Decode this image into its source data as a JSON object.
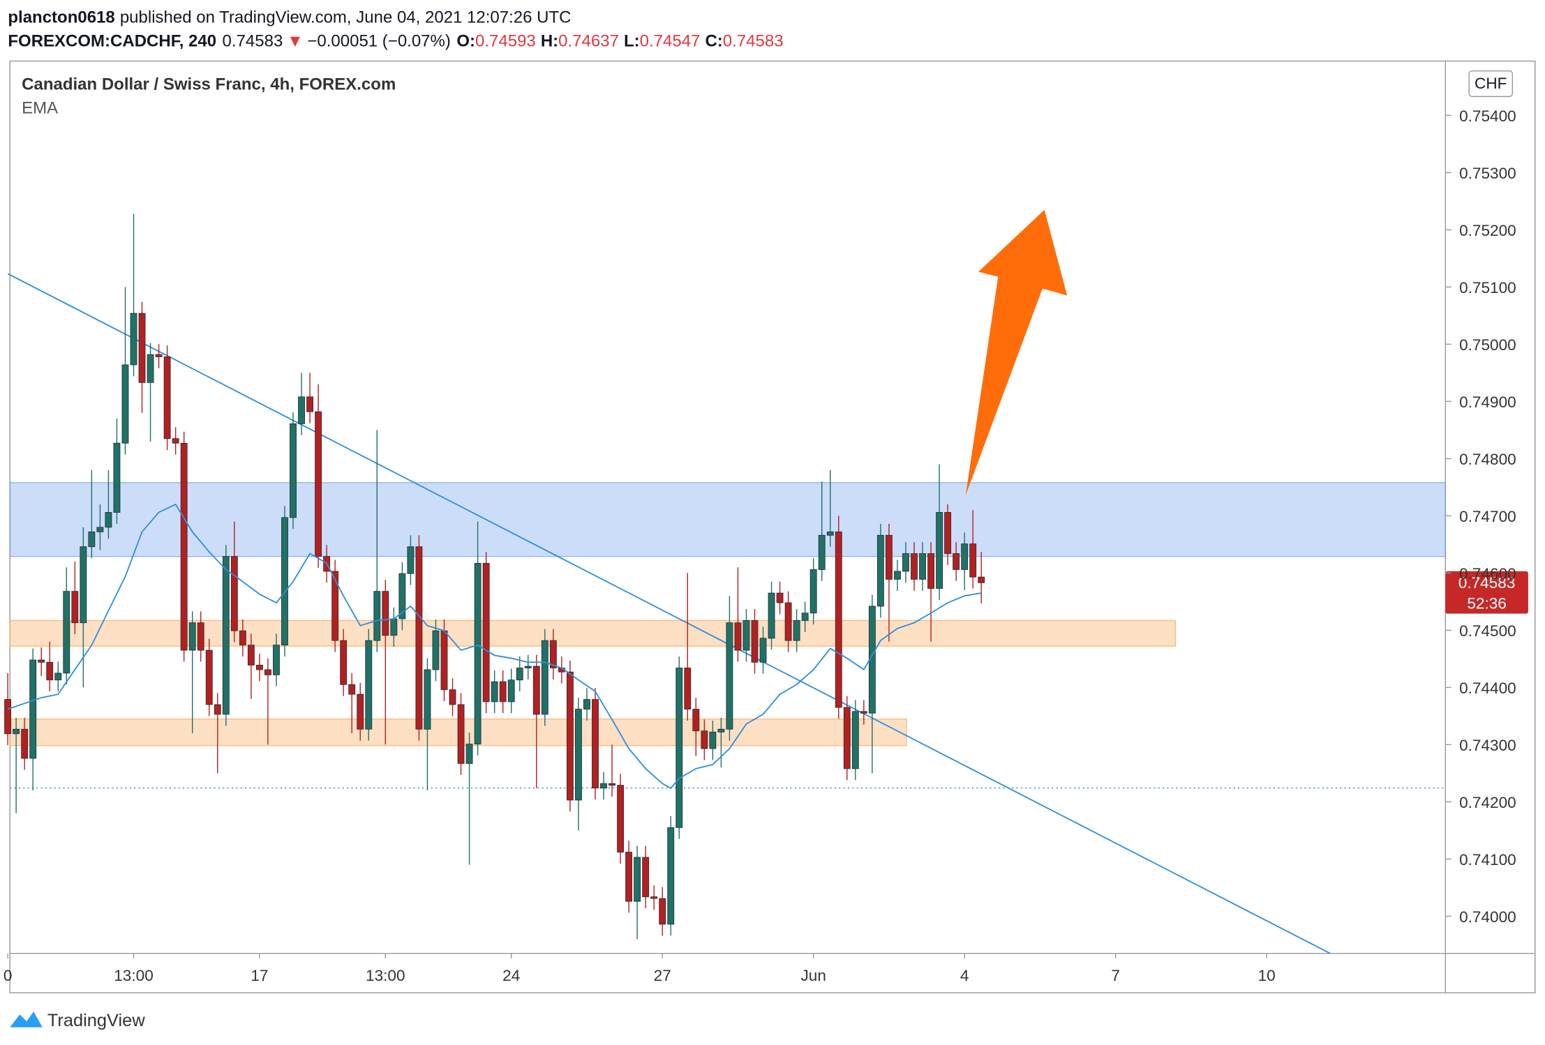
{
  "header": {
    "author": "plancton0618",
    "published": "published on TradingView.com, June 04, 2021 12:07:26 UTC",
    "symbol": "FOREXCOM:CADCHF, 240",
    "arrow": "▼",
    "change": "−0.00051 (−0.07%)",
    "o": "O:",
    "h": "H:",
    "l": "L:",
    "c": "C:"
  },
  "footer": {
    "brand": "TradingView"
  },
  "chart_data": {
    "type": "candlestick",
    "title": "Canadian Dollar / Swiss Franc, 4h, FOREX.com",
    "currency": "CHF",
    "countdown": "52:36",
    "up_color": "#1f7266",
    "down_color": "#b42020",
    "x": [
      0,
      1,
      2,
      3,
      4,
      5,
      6,
      7,
      8,
      9,
      10,
      11,
      12,
      13,
      14,
      15,
      16,
      17,
      18,
      19,
      20,
      21,
      22,
      23,
      24,
      25,
      26,
      27,
      28,
      29,
      30,
      31,
      32,
      33,
      34,
      35,
      36,
      37,
      38,
      39,
      40,
      41,
      42,
      43,
      44,
      45,
      46,
      47,
      48,
      49,
      50,
      51,
      52,
      53,
      54,
      55,
      56,
      57,
      58,
      59,
      60,
      61,
      62,
      63,
      64,
      65,
      66,
      67,
      68,
      69,
      70,
      71,
      72,
      73,
      74,
      75,
      76,
      77,
      78,
      79,
      80,
      81,
      82,
      83,
      84,
      85,
      86,
      87,
      88,
      89,
      90,
      91,
      92,
      93,
      94,
      95,
      96,
      97,
      98,
      99,
      100,
      101,
      102,
      103,
      104,
      105,
      106,
      107,
      108,
      109,
      110,
      111,
      112,
      113,
      114,
      115,
      116
    ],
    "open": [
      0.74379,
      0.74319,
      0.74327,
      0.74276,
      0.74448,
      0.74444,
      0.74413,
      0.74425,
      0.74568,
      0.74513,
      0.74646,
      0.74672,
      0.7468,
      0.74706,
      0.74827,
      0.74964,
      0.75054,
      0.74933,
      0.74982,
      0.74978,
      0.74835,
      0.74827,
      0.74465,
      0.74513,
      0.74465,
      0.7437,
      0.74353,
      0.74629,
      0.74499,
      0.74474,
      0.74439,
      0.74431,
      0.74422,
      0.74474,
      0.74697,
      0.74861,
      0.74908,
      0.74882,
      0.74629,
      0.74603,
      0.74482,
      0.74405,
      0.74388,
      0.74327,
      0.74482,
      0.74568,
      0.74491,
      0.7452,
      0.74599,
      0.74646,
      0.74327,
      0.74431,
      0.74499,
      0.74396,
      0.7437,
      0.74267,
      0.74301,
      0.74617,
      0.74375,
      0.7441,
      0.74375,
      0.74413,
      0.74434,
      0.74437,
      0.74353,
      0.74482,
      0.74434,
      0.74427,
      0.74203,
      0.74362,
      0.74379,
      0.74224,
      0.74232,
      0.74229,
      0.74112,
      0.74026,
      0.74103,
      0.74034,
      0.74031,
      0.73986,
      0.74155,
      0.74434,
      0.74362,
      0.74324,
      0.74293,
      0.74322,
      0.74327,
      0.74513,
      0.74465,
      0.74517,
      0.74444,
      0.74486,
      0.74565,
      0.74548,
      0.74482,
      0.74517,
      0.7453,
      0.74606,
      0.74666,
      0.74672,
      0.74365,
      0.74258,
      0.74358,
      0.74355,
      0.74542,
      0.74666,
      0.74589,
      0.74603,
      0.74634,
      0.74589,
      0.74634,
      0.74573,
      0.74706,
      0.74634,
      0.74606,
      0.74651,
      0.74593
    ],
    "high": [
      0.74425,
      0.74347,
      0.74347,
      0.74468,
      0.7447,
      0.7448,
      0.74445,
      0.7461,
      0.7462,
      0.7468,
      0.7478,
      0.7472,
      0.7478,
      0.7487,
      0.751,
      0.75228,
      0.75074,
      0.75002,
      0.75,
      0.74998,
      0.74855,
      0.74847,
      0.74533,
      0.74533,
      0.74485,
      0.7439,
      0.74649,
      0.7469,
      0.74519,
      0.74494,
      0.74459,
      0.74451,
      0.74494,
      0.74717,
      0.74881,
      0.7495,
      0.7495,
      0.7493,
      0.74649,
      0.74623,
      0.74502,
      0.74425,
      0.74408,
      0.74502,
      0.7485,
      0.74588,
      0.7454,
      0.74619,
      0.74666,
      0.74666,
      0.74451,
      0.74519,
      0.74519,
      0.74416,
      0.7439,
      0.74321,
      0.7469,
      0.74637,
      0.7443,
      0.7443,
      0.74433,
      0.74454,
      0.74457,
      0.74457,
      0.74502,
      0.74502,
      0.74454,
      0.74447,
      0.74382,
      0.74399,
      0.74399,
      0.74252,
      0.743,
      0.74249,
      0.74132,
      0.74123,
      0.74123,
      0.74054,
      0.74051,
      0.74175,
      0.74454,
      0.746,
      0.74382,
      0.74344,
      0.74342,
      0.74347,
      0.7456,
      0.7461,
      0.74537,
      0.74537,
      0.74506,
      0.74585,
      0.74585,
      0.74568,
      0.74537,
      0.7455,
      0.74626,
      0.7476,
      0.7478,
      0.747,
      0.74385,
      0.74378,
      0.74378,
      0.74562,
      0.74686,
      0.74686,
      0.74623,
      0.74654,
      0.74654,
      0.74654,
      0.74654,
      0.7479,
      0.7472,
      0.74654,
      0.74671,
      0.7471,
      0.74637
    ],
    "low": [
      0.74299,
      0.7418,
      0.74256,
      0.7422,
      0.7442,
      0.74393,
      0.74393,
      0.74405,
      0.74493,
      0.744,
      0.74626,
      0.7464,
      0.7466,
      0.74686,
      0.74807,
      0.74944,
      0.7488,
      0.7483,
      0.74958,
      0.74815,
      0.74807,
      0.74445,
      0.7432,
      0.74445,
      0.7435,
      0.7425,
      0.74333,
      0.74479,
      0.74454,
      0.7438,
      0.74411,
      0.743,
      0.74402,
      0.74454,
      0.74677,
      0.74841,
      0.74862,
      0.74609,
      0.74583,
      0.74462,
      0.74385,
      0.7432,
      0.74307,
      0.74307,
      0.74462,
      0.743,
      0.74471,
      0.745,
      0.74579,
      0.74307,
      0.7422,
      0.74411,
      0.74376,
      0.7435,
      0.74247,
      0.7409,
      0.74281,
      0.74355,
      0.74355,
      0.74355,
      0.74355,
      0.74393,
      0.74414,
      0.74224,
      0.74333,
      0.74414,
      0.74407,
      0.74183,
      0.7415,
      0.74342,
      0.74204,
      0.74204,
      0.74209,
      0.74092,
      0.74006,
      0.7396,
      0.74014,
      0.74011,
      0.73966,
      0.73966,
      0.74135,
      0.74342,
      0.7428,
      0.74273,
      0.74273,
      0.7426,
      0.74307,
      0.74445,
      0.74445,
      0.74424,
      0.74424,
      0.74466,
      0.74528,
      0.74462,
      0.74462,
      0.74497,
      0.7451,
      0.74586,
      0.74646,
      0.74345,
      0.74238,
      0.74238,
      0.74335,
      0.7425,
      0.74522,
      0.7448,
      0.74569,
      0.74583,
      0.74569,
      0.74569,
      0.7448,
      0.74553,
      0.74614,
      0.74586,
      0.7457,
      0.74573,
      0.74547
    ],
    "close": [
      0.74319,
      0.74327,
      0.74276,
      0.74448,
      0.74444,
      0.74413,
      0.74425,
      0.74568,
      0.74513,
      0.74646,
      0.74672,
      0.7468,
      0.74706,
      0.74827,
      0.74964,
      0.75054,
      0.74933,
      0.74982,
      0.74978,
      0.74835,
      0.74827,
      0.74465,
      0.74513,
      0.74465,
      0.7437,
      0.74353,
      0.74629,
      0.74499,
      0.74474,
      0.74439,
      0.74431,
      0.74422,
      0.74474,
      0.74697,
      0.74861,
      0.74908,
      0.74882,
      0.74629,
      0.74603,
      0.74482,
      0.74405,
      0.74388,
      0.74327,
      0.74482,
      0.74568,
      0.74491,
      0.7452,
      0.74599,
      0.74646,
      0.74327,
      0.74431,
      0.74499,
      0.74396,
      0.7437,
      0.74267,
      0.74301,
      0.74617,
      0.74375,
      0.7441,
      0.74375,
      0.74413,
      0.74434,
      0.74437,
      0.74353,
      0.74482,
      0.74434,
      0.74427,
      0.74203,
      0.74362,
      0.74379,
      0.74224,
      0.74232,
      0.74229,
      0.74112,
      0.74026,
      0.74103,
      0.74034,
      0.74031,
      0.73986,
      0.74155,
      0.74434,
      0.74362,
      0.74324,
      0.74293,
      0.74322,
      0.74327,
      0.74513,
      0.74465,
      0.74517,
      0.74444,
      0.74486,
      0.74565,
      0.74548,
      0.74482,
      0.74517,
      0.7453,
      0.74606,
      0.74666,
      0.74672,
      0.74365,
      0.74258,
      0.74358,
      0.74355,
      0.74542,
      0.74666,
      0.74589,
      0.74603,
      0.74634,
      0.74589,
      0.74634,
      0.74573,
      0.74706,
      0.74634,
      0.74606,
      0.74651,
      0.74593,
      0.74583
    ],
    "overlay": {
      "name": "EMA",
      "color": "#2f8fdc",
      "x": [
        0,
        4,
        6,
        8,
        10,
        12,
        14,
        16,
        18,
        20,
        22,
        24,
        26,
        28,
        30,
        32,
        34,
        36,
        38,
        40,
        42,
        44,
        46,
        48,
        50,
        52,
        54,
        56,
        58,
        60,
        62,
        64,
        66,
        68,
        70,
        72,
        74,
        76,
        78,
        79,
        80,
        82,
        84,
        86,
        88,
        90,
        92,
        94,
        96,
        98,
        100,
        102,
        104,
        106,
        108,
        110,
        112,
        114,
        116
      ],
      "values": [
        0.74362,
        0.74382,
        0.74388,
        0.74431,
        0.74474,
        0.74534,
        0.74594,
        0.74672,
        0.74706,
        0.7472,
        0.74672,
        0.74637,
        0.74606,
        0.74585,
        0.74563,
        0.74548,
        0.74585,
        0.74634,
        0.74617,
        0.7456,
        0.74508,
        0.74517,
        0.7452,
        0.74542,
        0.74508,
        0.74499,
        0.74465,
        0.74474,
        0.74456,
        0.74451,
        0.74444,
        0.74444,
        0.74434,
        0.74413,
        0.74393,
        0.74344,
        0.74293,
        0.74258,
        0.74232,
        0.74224,
        0.74241,
        0.74258,
        0.74265,
        0.74293,
        0.74336,
        0.74353,
        0.74388,
        0.74405,
        0.74431,
        0.74468,
        0.74451,
        0.74431,
        0.74482,
        0.74503,
        0.74513,
        0.7453,
        0.74548,
        0.7456,
        0.74565
      ]
    },
    "xlim": [
      0.258,
      171.3
    ],
    "xticks": [
      {
        "value": 0,
        "label": "0"
      },
      {
        "value": 15,
        "label": "13:00"
      },
      {
        "value": 30,
        "label": "17"
      },
      {
        "value": 45,
        "label": "13:00"
      },
      {
        "value": 60,
        "label": "24"
      },
      {
        "value": 78,
        "label": "27"
      },
      {
        "value": 96,
        "label": "Jun"
      },
      {
        "value": 114,
        "label": "4"
      },
      {
        "value": 132,
        "label": "7"
      },
      {
        "value": 150,
        "label": "10"
      }
    ],
    "ylim": [
      0.73935,
      0.75495
    ],
    "yticks": [
      {
        "value": 0.74,
        "label": "0.74000"
      },
      {
        "value": 0.741,
        "label": "0.74100"
      },
      {
        "value": 0.742,
        "label": "0.74200"
      },
      {
        "value": 0.743,
        "label": "0.74300"
      },
      {
        "value": 0.744,
        "label": "0.74400"
      },
      {
        "value": 0.745,
        "label": "0.74500"
      },
      {
        "value": 0.746,
        "label": "0.74600"
      },
      {
        "value": 0.747,
        "label": "0.74700"
      },
      {
        "value": 0.748,
        "label": "0.74800"
      },
      {
        "value": 0.749,
        "label": "0.74900"
      },
      {
        "value": 0.75,
        "label": "0.75000"
      },
      {
        "value": 0.751,
        "label": "0.75100"
      },
      {
        "value": 0.752,
        "label": "0.75200"
      },
      {
        "value": 0.753,
        "label": "0.75300"
      },
      {
        "value": 0.754,
        "label": "0.75400"
      }
    ]
  }
}
